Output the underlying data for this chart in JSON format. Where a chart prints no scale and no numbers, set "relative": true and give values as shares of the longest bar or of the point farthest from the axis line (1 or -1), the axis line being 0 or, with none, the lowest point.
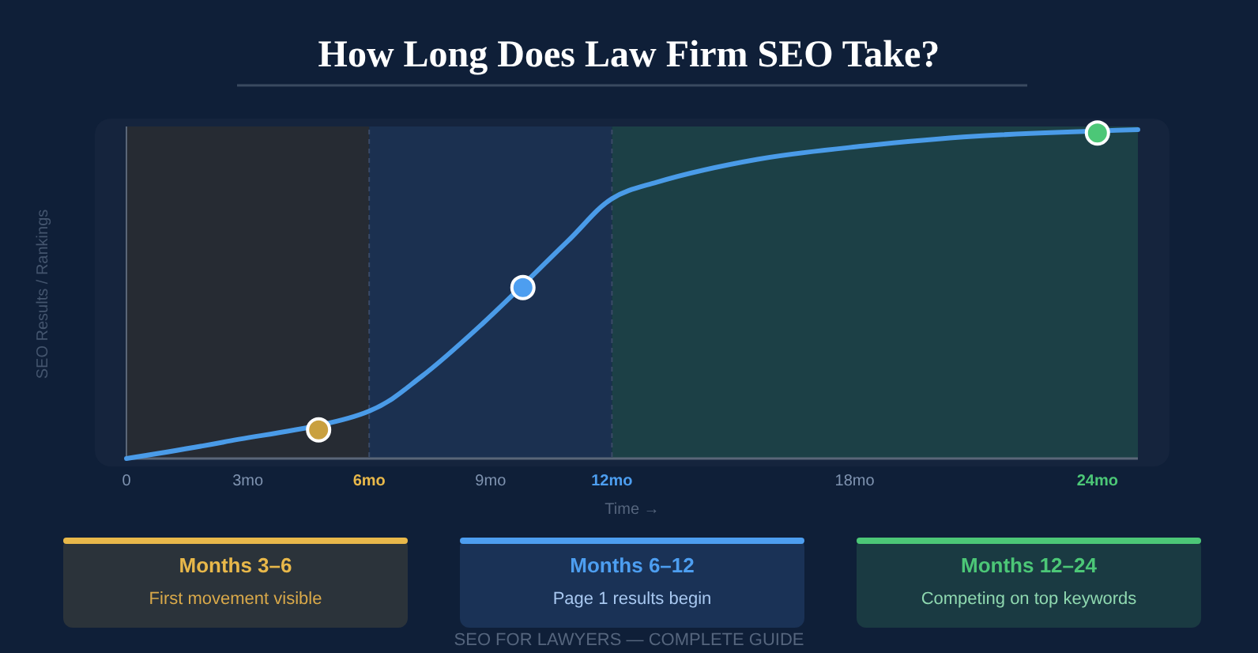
{
  "chart_data": {
    "type": "line",
    "title": "How Long Does Law Firm SEO Take?",
    "xlabel": "Time →",
    "ylabel": "SEO Results / Rankings",
    "relative": true,
    "xlim": [
      0,
      25
    ],
    "xticks": [
      0,
      {
        "value": 3,
        "label": "3mo"
      },
      {
        "value": 6,
        "label": "6mo"
      },
      {
        "value": 9,
        "label": "9mo"
      },
      {
        "value": 12,
        "label": "12mo"
      },
      {
        "value": 18,
        "label": "18mo"
      },
      {
        "value": 24,
        "label": "24mo"
      }
    ],
    "series": [
      {
        "color": "#4a9be8",
        "x": [
          0,
          2.4,
          6,
          7.3,
          8.8,
          10.9,
          12,
          13.1,
          15.6,
          18.2,
          21,
          25
        ],
        "values": [
          0,
          0.05,
          0.144,
          0.25,
          0.41,
          0.66,
          0.79,
          0.84,
          0.91,
          0.95,
          0.98,
          1
        ]
      },
      {
        "type": "scatter",
        "marker": "circle",
        "x": [
          4.75,
          9.8,
          24
        ],
        "values": [
          0.087,
          0.52,
          0.99
        ],
        "colors": [
          "#c9a040",
          "#4d9ef0",
          "#4cc777"
        ]
      }
    ],
    "line_style": "solid",
    "bands": [
      {
        "axis": "x",
        "from": 0,
        "to": 6,
        "color": "#262b33"
      },
      {
        "axis": "x",
        "from": 6,
        "to": 12,
        "color": "#1b3050"
      },
      {
        "axis": "x",
        "from": 12,
        "to": 25,
        "color": "#1c4046"
      }
    ],
    "annotations": [
      "Months 3–6",
      "First movement visible",
      "Months 6–12",
      "Page 1 results begin",
      "Months 12–24",
      "Competing on top keywords",
      "SEO FOR LAWYERS — COMPLETE GUIDE"
    ]
  }
}
